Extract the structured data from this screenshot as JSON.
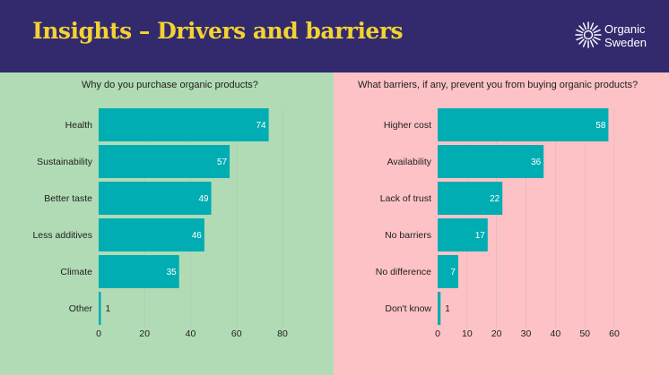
{
  "header": {
    "title": "Insights – Drivers and barriers",
    "logo_line1": "Organic",
    "logo_line2": "Sweden",
    "logo_icon": "sunburst-icon"
  },
  "colors": {
    "header_bg": "#332a6e",
    "title": "#f3d232",
    "left_bg": "#b1dbb5",
    "right_bg": "#fdc2c5",
    "bar": "#00adb3"
  },
  "chart_data": [
    {
      "type": "bar",
      "orientation": "horizontal",
      "title": "Why do you purchase organic products?",
      "categories": [
        "Health",
        "Sustainability",
        "Better taste",
        "Less additives",
        "Climate",
        "Other"
      ],
      "values": [
        74,
        57,
        49,
        46,
        35,
        1
      ],
      "xlim": [
        0,
        80
      ],
      "xticks": [
        0,
        20,
        40,
        60,
        80
      ],
      "grid": true,
      "data_labels": true
    },
    {
      "type": "bar",
      "orientation": "horizontal",
      "title": "What barriers, if any, prevent you from buying organic products?",
      "categories": [
        "Higher cost",
        "Availability",
        "Lack of trust",
        "No barriers",
        "No difference",
        "Don't know"
      ],
      "values": [
        58,
        36,
        22,
        17,
        7,
        1
      ],
      "xlim": [
        0,
        60
      ],
      "xticks": [
        0,
        10,
        20,
        30,
        40,
        50,
        60
      ],
      "grid": true,
      "data_labels": true
    }
  ]
}
